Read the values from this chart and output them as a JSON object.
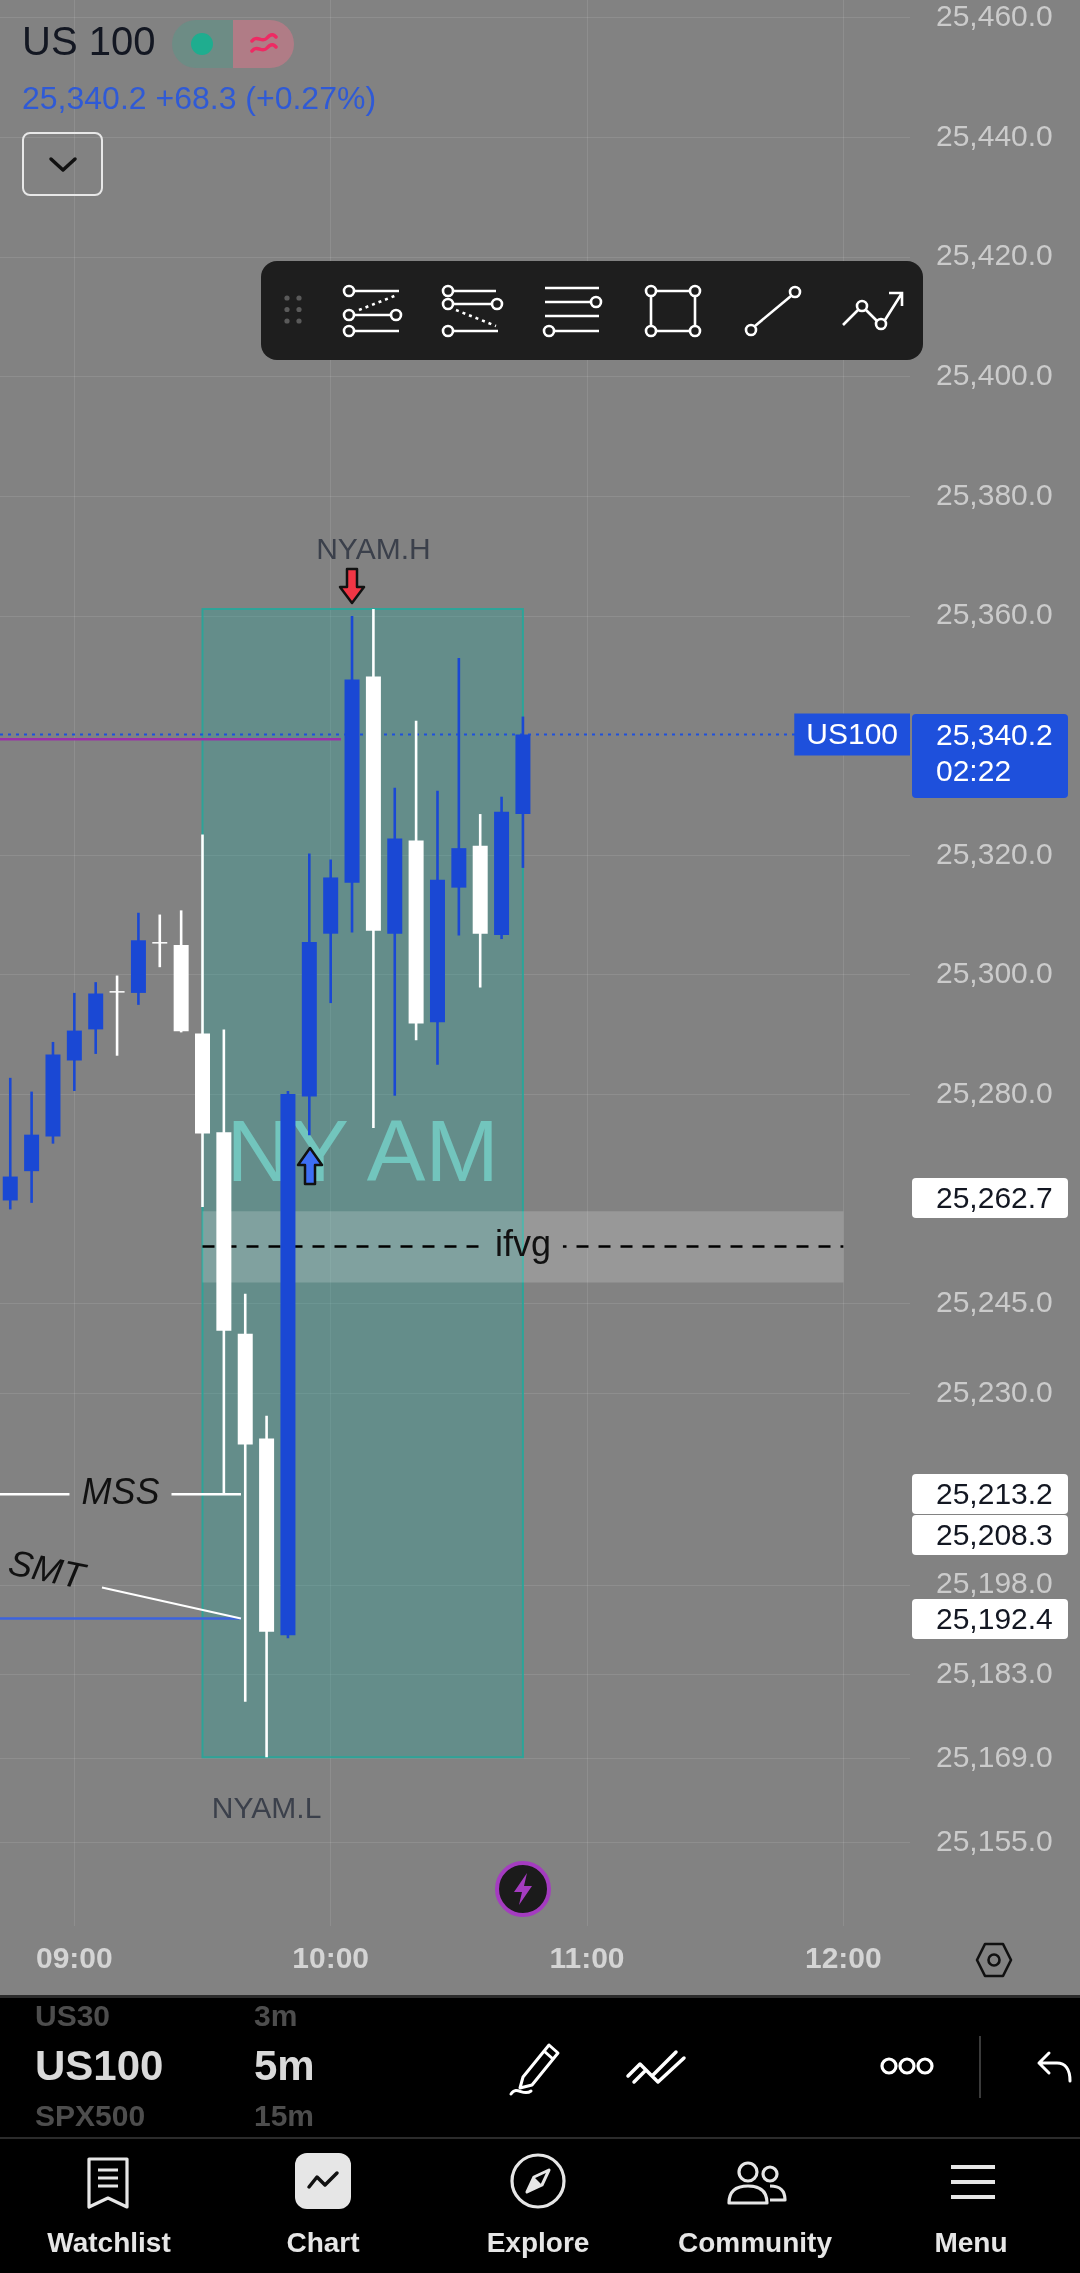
{
  "chart_data": {
    "type": "candlestick",
    "title": "US 100",
    "subtitle": "25,340.2 +68.3 (+0.27%)",
    "x": [
      8.75,
      8.8333,
      8.9167,
      9,
      9.0833,
      9.1667,
      9.25,
      9.3333,
      9.4167,
      9.5,
      9.5833,
      9.6667,
      9.75,
      9.8333,
      9.9167,
      10,
      10.0833,
      10.1667,
      10.25,
      10.3333,
      10.4167,
      10.5,
      10.5833,
      10.6667,
      10.75
    ],
    "ohlc": [
      [
        25262.3,
        25282.8,
        25260.8,
        25266.3
      ],
      [
        25267.2,
        25280.5,
        25261.9,
        25273.3
      ],
      [
        25273.0,
        25288.8,
        25271.8,
        25286.7
      ],
      [
        25285.7,
        25297.0,
        25280.6,
        25290.7
      ],
      [
        25290.9,
        25298.8,
        25286.8,
        25296.9
      ],
      [
        25297.3,
        25299.9,
        25286.5,
        25297.1
      ],
      [
        25297.0,
        25310.4,
        25295.0,
        25305.8
      ],
      [
        25305.5,
        25310.1,
        25301.3,
        25305.3
      ],
      [
        25305.0,
        25310.8,
        25290.4,
        25290.6
      ],
      [
        25290.2,
        25323.5,
        25261.2,
        25273.5
      ],
      [
        25273.7,
        25290.9,
        25213.2,
        25240.5
      ],
      [
        25240.0,
        25246.7,
        25178.5,
        25221.5
      ],
      [
        25222.5,
        25226.3,
        25169.2,
        25190.2
      ],
      [
        25189.6,
        25280.6,
        25189.1,
        25280.1
      ],
      [
        25279.7,
        25320.3,
        25273.2,
        25305.5
      ],
      [
        25306.9,
        25319.3,
        25295.3,
        25316.3
      ],
      [
        25315.4,
        25360.0,
        25307.1,
        25349.4
      ],
      [
        25349.9,
        25361.2,
        25274.4,
        25307.4
      ],
      [
        25306.9,
        25331.3,
        25279.8,
        25322.8
      ],
      [
        25322.5,
        25342.5,
        25289.1,
        25291.9
      ],
      [
        25292.1,
        25330.8,
        25285.0,
        25315.9
      ],
      [
        25314.6,
        25353.0,
        25306.6,
        25321.2
      ],
      [
        25321.6,
        25326.9,
        25297.9,
        25306.9
      ],
      [
        25306.7,
        25329.8,
        25306.0,
        25327.3
      ],
      [
        25326.9,
        25343.2,
        25317.9,
        25340.2
      ]
    ],
    "colors": [
      "#1a48d4",
      "#1a48d4",
      "#1a48d4",
      "#1a48d4",
      "#1a48d4",
      "#ffffff",
      "#1a48d4",
      "#ffffff",
      "#ffffff",
      "#ffffff",
      "#ffffff",
      "#ffffff",
      "#ffffff",
      "#1a48d4",
      "#1a48d4",
      "#1a48d4",
      "#1a48d4",
      "#ffffff",
      "#1a48d4",
      "#ffffff",
      "#1a48d4",
      "#1a48d4",
      "#ffffff",
      "#1a48d4",
      "#1a48d4"
    ],
    "series": [
      {
        "name": "MSS",
        "type": "line",
        "x": [
          8.71,
          9.65
        ],
        "values": [
          25213.2,
          25213.2
        ],
        "color": "#ffffff"
      },
      {
        "type": "line",
        "x": [
          8.71,
          9.65
        ],
        "values": [
          25192.4,
          25192.4
        ],
        "color": "#3d63dd"
      },
      {
        "type": "line",
        "x": [
          8.71,
          10.04
        ],
        "values": [
          25339.4,
          25339.4
        ],
        "color": "#9b30a8"
      },
      {
        "name": "ifvg",
        "type": "line",
        "x": [
          9.5,
          12
        ],
        "values": [
          25254.6,
          25254.6
        ],
        "lower": [
          25248.6,
          25248.6
        ],
        "upper": [
          25260.5,
          25260.5
        ],
        "color": "#000000",
        "line_style": "dashed"
      }
    ],
    "xlim": [
      8.71,
      12.26
    ],
    "xticks": [
      {
        "value": 9,
        "label": "09:00"
      },
      {
        "value": 10,
        "label": "10:00"
      },
      {
        "value": 11,
        "label": "11:00"
      },
      {
        "value": 12,
        "label": "12:00"
      }
    ],
    "ylim": [
      25141,
      25463
    ],
    "yticks": [
      {
        "value": 25460,
        "label": "25,460.0"
      },
      {
        "value": 25440,
        "label": "25,440.0"
      },
      {
        "value": 25420,
        "label": "25,420.0"
      },
      {
        "value": 25400,
        "label": "25,400.0"
      },
      {
        "value": 25380,
        "label": "25,380.0"
      },
      {
        "value": 25360,
        "label": "25,360.0"
      },
      {
        "value": 25320,
        "label": "25,320.0"
      },
      {
        "value": 25300,
        "label": "25,300.0"
      },
      {
        "value": 25280,
        "label": "25,280.0"
      },
      {
        "value": 25245,
        "label": "25,245.0"
      },
      {
        "value": 25230,
        "label": "25,230.0"
      },
      {
        "value": 25198,
        "label": "25,198.0"
      },
      {
        "value": 25183,
        "label": "25,183.0"
      },
      {
        "value": 25169,
        "label": "25,169.0"
      },
      {
        "value": 25155,
        "label": "25,155.0"
      }
    ],
    "grid": true,
    "ref_lines": [
      {
        "axis": "y",
        "value": 25340.2,
        "label": "US100",
        "color": "#1e50dc",
        "line_style": "dotted"
      }
    ],
    "bands": [
      {
        "axis": "x",
        "from": 9.5,
        "to": 10.75,
        "label": "NY AM",
        "color": "#26a69a"
      }
    ],
    "annotations": [
      {
        "text": "NYAM.H",
        "x": 10.1667,
        "y": 25361.2
      },
      {
        "text": "NYAM.L",
        "x": 9.75,
        "y": 25169.2
      },
      {
        "text": "SMT",
        "x": 9.65,
        "y": 25192.4
      },
      "25,340.2",
      "25,262.7",
      "25,213.2",
      "25,208.3",
      "25,192.4",
      "02:22",
      "US30",
      "3m",
      "US100",
      "5m",
      "SPX500",
      "15m",
      "Watchlist",
      "Chart",
      "Explore",
      "Community",
      "Menu"
    ]
  }
}
